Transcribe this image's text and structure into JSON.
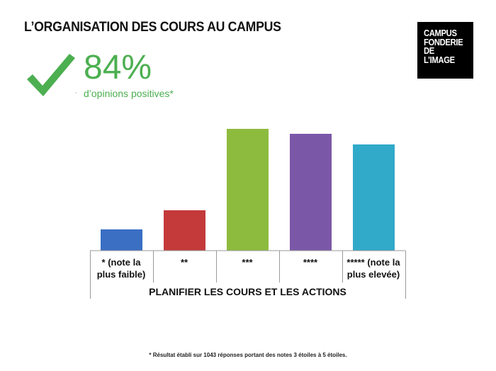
{
  "header": {
    "title": "L’ORGANISATION DES COURS AU CAMPUS",
    "logo_lines": [
      "CAMPUS",
      "FONDERIE",
      "DE",
      "L’IMAGE"
    ]
  },
  "kpi": {
    "icon": "checkmark-icon",
    "value": "84%",
    "label": "d’opinions positives*",
    "color": "#4caf50"
  },
  "chart_data": {
    "type": "bar",
    "categories": [
      "* (note la plus faible)",
      "**",
      "***",
      "****",
      "***** (note la plus elevée)"
    ],
    "category_lines": [
      [
        "* (note la",
        "plus faible)"
      ],
      [
        "**"
      ],
      [
        "***"
      ],
      [
        "****"
      ],
      [
        "***** (note la",
        "plus elevée)"
      ]
    ],
    "values": [
      30,
      57,
      172,
      165,
      150
    ],
    "colors": [
      "#3a6fc4",
      "#c4393a",
      "#8dbb3e",
      "#7b57a8",
      "#31a9c9"
    ],
    "xlabel": "PLANIFIER LES COURS ET LES ACTIONS",
    "ylabel": "",
    "grid": false,
    "legend": "none"
  },
  "footnote": "* Résultat établi sur 1043 réponses portant des notes 3 étoiles à 5 étoiles."
}
